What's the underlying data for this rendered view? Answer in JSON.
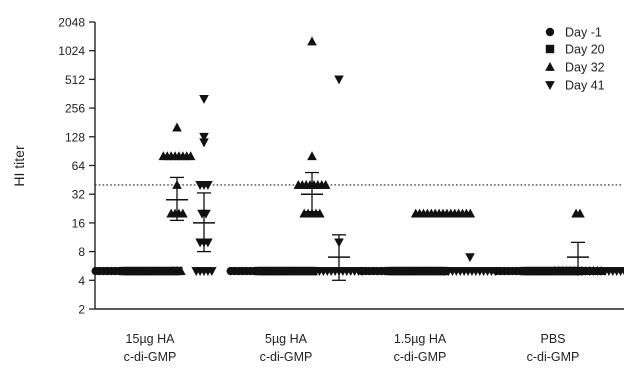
{
  "chart_data": {
    "type": "scatter",
    "subtype": "dot-plot with mean and SEM error bars",
    "ylabel": "HI titer",
    "xlabel": "",
    "title": "",
    "yscale": "log2",
    "ylim": [
      2,
      2048
    ],
    "yticks": [
      {
        "value": 2,
        "label": "2"
      },
      {
        "value": 4,
        "label": "4"
      },
      {
        "value": 8,
        "label": "8"
      },
      {
        "value": 16,
        "label": "16"
      },
      {
        "value": 32,
        "label": "32"
      },
      {
        "value": 64,
        "label": "64"
      },
      {
        "value": 128,
        "label": "128"
      },
      {
        "value": 256,
        "label": "256"
      },
      {
        "value": 512,
        "label": "512"
      },
      {
        "value": 1024,
        "label": "1024"
      },
      {
        "value": 2048,
        "label": "2048"
      }
    ],
    "reference_line": {
      "value": 40,
      "style": "dotted"
    },
    "legend_position": "top-right",
    "groups": [
      {
        "line1": "15µg HA",
        "line2": "c-di-GMP"
      },
      {
        "line1": "5µg HA",
        "line2": "c-di-GMP"
      },
      {
        "line1": "1.5µg HA",
        "line2": "c-di-GMP"
      },
      {
        "line1": "PBS",
        "line2": "c-di-GMP"
      }
    ],
    "series": [
      {
        "name": "Day -1",
        "marker": "circle",
        "data": [
          [
            5,
            5,
            5,
            5,
            5,
            5,
            5,
            5,
            5,
            5,
            5,
            5,
            5,
            5,
            5
          ],
          [
            5,
            5,
            5,
            5,
            5,
            5,
            5,
            5,
            5,
            5,
            5,
            5,
            5,
            5,
            5
          ],
          [
            5,
            5,
            5,
            5,
            5,
            5,
            5,
            5,
            5,
            5,
            5,
            5,
            5,
            5,
            5
          ],
          [
            5,
            5,
            5,
            5,
            5,
            5,
            5,
            5,
            5,
            5,
            5,
            5,
            5,
            5,
            5
          ]
        ],
        "mean": [
          5,
          5,
          5,
          5
        ],
        "sem": [
          [
            5,
            5
          ],
          [
            5,
            5
          ],
          [
            5,
            5
          ],
          [
            5,
            5
          ]
        ]
      },
      {
        "name": "Day 20",
        "marker": "square",
        "data": [
          [
            5,
            5,
            5,
            5,
            5,
            5,
            5,
            5,
            5,
            5,
            5,
            5,
            5,
            5,
            5
          ],
          [
            5,
            5,
            5,
            5,
            5,
            5,
            5,
            5,
            5,
            5,
            5,
            5,
            5,
            5,
            5
          ],
          [
            5,
            5,
            5,
            5,
            5,
            5,
            5,
            5,
            5,
            5,
            5,
            5,
            5,
            5,
            5
          ],
          [
            5,
            5,
            5,
            5,
            5,
            5,
            5,
            5,
            5,
            5,
            5,
            5,
            5,
            5,
            5
          ]
        ],
        "mean": [
          5,
          5,
          5,
          5
        ],
        "sem": [
          [
            5,
            5
          ],
          [
            5,
            5
          ],
          [
            5,
            5
          ],
          [
            5,
            5
          ]
        ]
      },
      {
        "name": "Day 32",
        "marker": "triangle-up",
        "data": [
          [
            160,
            80,
            80,
            80,
            80,
            80,
            80,
            80,
            80,
            40,
            20,
            20,
            20,
            20,
            5,
            5,
            5
          ],
          [
            1280,
            80,
            40,
            40,
            40,
            40,
            40,
            40,
            40,
            40,
            20,
            20,
            20,
            20,
            20
          ],
          [
            20,
            20,
            20,
            20,
            20,
            20,
            20,
            20,
            20,
            20,
            20,
            20,
            20,
            20,
            20
          ],
          [
            20,
            20,
            5,
            5,
            5,
            5,
            5,
            5,
            5,
            5,
            5,
            5,
            5,
            5,
            5
          ]
        ],
        "mean": [
          28,
          32,
          20,
          7
        ],
        "sem": [
          [
            17,
            48
          ],
          [
            21,
            54
          ],
          [
            20,
            20
          ],
          [
            5,
            10
          ]
        ]
      },
      {
        "name": "Day 41",
        "marker": "triangle-down",
        "data": [
          [
            320,
            128,
            112,
            40,
            40,
            40,
            20,
            20,
            10,
            10,
            10,
            5,
            5,
            5,
            5,
            5
          ],
          [
            512,
            10,
            5,
            5,
            5,
            5,
            5,
            5,
            5,
            5,
            5,
            5,
            5,
            5,
            5
          ],
          [
            7,
            5,
            5,
            5,
            5,
            5,
            5,
            5,
            5,
            5,
            5,
            5,
            5,
            5,
            5
          ],
          [
            5,
            5,
            5,
            5,
            5,
            5,
            5,
            5,
            5,
            5,
            5,
            5,
            5,
            5,
            5
          ]
        ],
        "mean": [
          16,
          7,
          5,
          5
        ],
        "sem": [
          [
            8,
            33
          ],
          [
            4,
            12
          ],
          [
            5,
            5
          ],
          [
            5,
            5
          ]
        ]
      }
    ]
  }
}
